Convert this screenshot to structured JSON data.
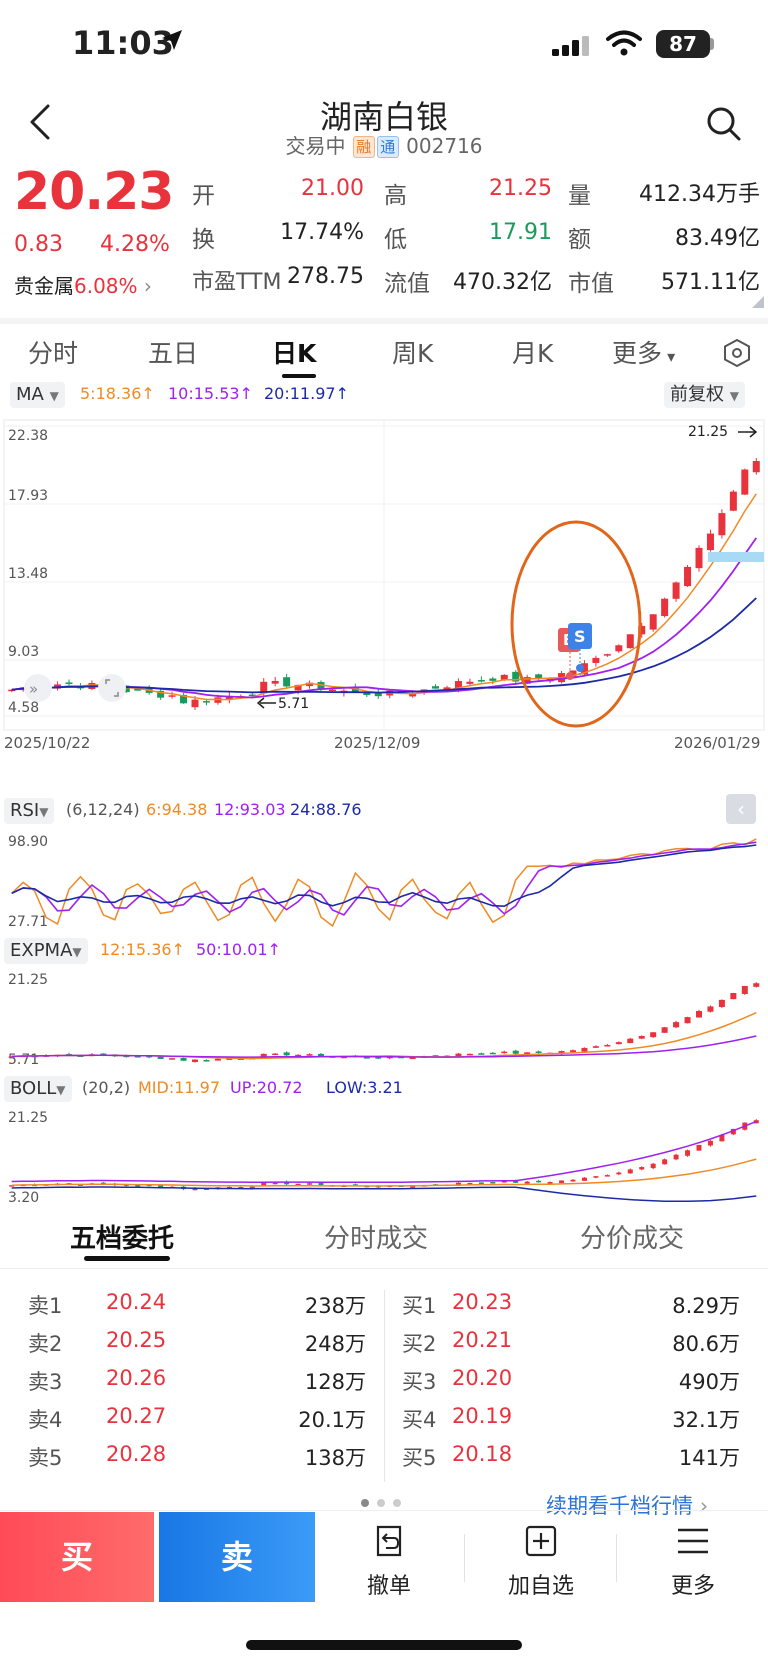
{
  "status": {
    "time": "11:03",
    "battery": "87"
  },
  "header": {
    "name": "湖南白银",
    "trade_status": "交易中",
    "tag_rong": "融",
    "tag_tong": "通",
    "code": "002716"
  },
  "quote": {
    "price": "20.23",
    "change": "0.83",
    "change_pct": "4.28%",
    "sector_label": "贵金属",
    "sector_pct": "6.08%",
    "fields": [
      {
        "label": "开",
        "value": "21.00",
        "color": "red"
      },
      {
        "label": "高",
        "value": "21.25",
        "color": "red"
      },
      {
        "label": "量",
        "value": "412.34万手",
        "color": "dark"
      },
      {
        "label": "换",
        "value": "17.74%",
        "color": "dark"
      },
      {
        "label": "低",
        "value": "17.91",
        "color": "green"
      },
      {
        "label": "额",
        "value": "83.49亿",
        "color": "dark"
      },
      {
        "label": "市盈TTM",
        "value": "278.75",
        "color": "dark"
      },
      {
        "label": "流值",
        "value": "470.32亿",
        "color": "dark"
      },
      {
        "label": "市值",
        "value": "571.11亿",
        "color": "dark"
      }
    ]
  },
  "tabs": [
    "分时",
    "五日",
    "日K",
    "周K",
    "月K",
    "更多"
  ],
  "active_tab": "日K",
  "main_chart": {
    "ma_label": "MA",
    "ma5": "5:18.36↑",
    "ma10": "10:15.53↑",
    "ma20": "20:11.97↑",
    "adjust": "前复权",
    "y_labels": [
      "22.38",
      "17.93",
      "13.48",
      "9.03",
      "4.58"
    ],
    "x_labels": [
      "2025/10/22",
      "2025/12/09",
      "2026/01/29"
    ],
    "high_label": "21.25",
    "low_label": "5.71",
    "marker_b": "B",
    "marker_s": "S"
  },
  "rsi": {
    "label": "RSI",
    "params": "(6,12,24)",
    "v6": "6:94.38",
    "v12": "12:93.03",
    "v24": "24:88.76",
    "y_top": "98.90",
    "y_bottom": "27.71"
  },
  "expma": {
    "label": "EXPMA",
    "v12": "12:15.36↑",
    "v50": "50:10.01↑",
    "y_top": "21.25",
    "y_bottom": "5.71"
  },
  "boll": {
    "label": "BOLL",
    "params": "(20,2)",
    "mid": "MID:11.97",
    "up": "UP:20.72",
    "low": "LOW:3.21",
    "y_top": "21.25",
    "y_bottom": "3.20"
  },
  "chart_data": {
    "type": "candlestick",
    "x_range": [
      "2025/10/22",
      "2026/01/29"
    ],
    "ylim": [
      4.58,
      22.38
    ],
    "recent_high": 21.25,
    "period_low": 5.71,
    "ma": {
      "ma5": 18.36,
      "ma10": 15.53,
      "ma20": 11.97
    }
  },
  "order_book": {
    "tabs": [
      "五档委托",
      "分时成交",
      "分价成交"
    ],
    "sell": [
      {
        "label": "卖1",
        "price": "20.24",
        "vol": "238万"
      },
      {
        "label": "卖2",
        "price": "20.25",
        "vol": "248万"
      },
      {
        "label": "卖3",
        "price": "20.26",
        "vol": "128万"
      },
      {
        "label": "卖4",
        "price": "20.27",
        "vol": "20.1万"
      },
      {
        "label": "卖5",
        "price": "20.28",
        "vol": "138万"
      }
    ],
    "buy": [
      {
        "label": "买1",
        "price": "20.23",
        "vol": "8.29万"
      },
      {
        "label": "买2",
        "price": "20.21",
        "vol": "80.6万"
      },
      {
        "label": "买3",
        "price": "20.20",
        "vol": "490万"
      },
      {
        "label": "买4",
        "price": "20.19",
        "vol": "32.1万"
      },
      {
        "label": "买5",
        "price": "20.18",
        "vol": "141万"
      }
    ],
    "more_link": "续期看千档行情"
  },
  "bottom": {
    "buy": "买",
    "sell": "卖",
    "cancel": "撤单",
    "watch": "加自选",
    "more": "更多"
  }
}
